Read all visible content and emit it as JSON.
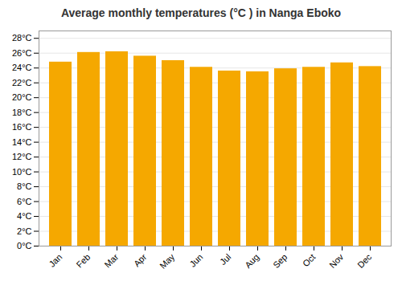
{
  "chart_data": {
    "type": "bar",
    "title": "Average monthly temperatures (°C ) in Nanga Eboko",
    "categories": [
      "Jan",
      "Feb",
      "Mar",
      "Apr",
      "May",
      "Jun",
      "Jul",
      "Aug",
      "Sep",
      "Oct",
      "Nov",
      "Dec"
    ],
    "values": [
      24.8,
      26.1,
      26.2,
      25.6,
      25.0,
      24.1,
      23.6,
      23.5,
      23.9,
      24.1,
      24.7,
      24.2
    ],
    "color": "#F5A800",
    "ylim": [
      0,
      29
    ],
    "yticks": [
      {
        "value": 0,
        "label": "0°C"
      },
      {
        "value": 2,
        "label": "2°C"
      },
      {
        "value": 4,
        "label": "4°C"
      },
      {
        "value": 6,
        "label": "6°C"
      },
      {
        "value": 8,
        "label": "8°C"
      },
      {
        "value": 10,
        "label": "10°C"
      },
      {
        "value": 12,
        "label": "12°C"
      },
      {
        "value": 14,
        "label": "14°C"
      },
      {
        "value": 16,
        "label": "16°C"
      },
      {
        "value": 18,
        "label": "18°C"
      },
      {
        "value": 20,
        "label": "20°C"
      },
      {
        "value": 22,
        "label": "22°C"
      },
      {
        "value": 24,
        "label": "24°C"
      },
      {
        "value": 26,
        "label": "26°C"
      },
      {
        "value": 28,
        "label": "28°C"
      }
    ],
    "grid": true
  }
}
